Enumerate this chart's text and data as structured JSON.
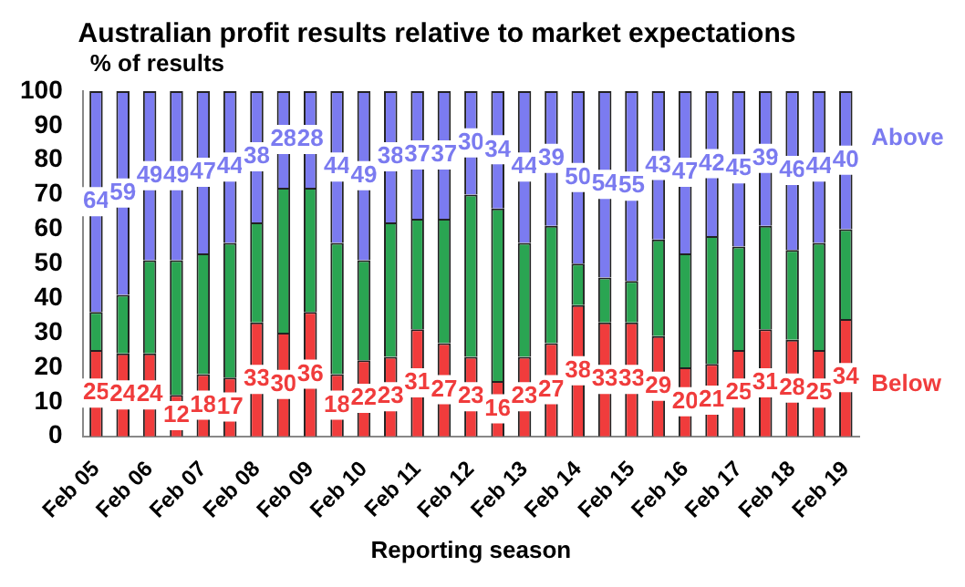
{
  "chart_data": {
    "type": "bar",
    "title": "Australian profit results relative to market expectations",
    "xlabel": "Reporting season",
    "ylabel": "% of results",
    "stacked": true,
    "legend": false,
    "grid": false,
    "categories": [
      "Feb 05",
      null,
      "Feb 06",
      null,
      "Feb 07",
      null,
      "Feb 08",
      null,
      "Feb 09",
      null,
      "Feb 10",
      null,
      "Feb 11",
      null,
      "Feb 12",
      null,
      "Feb 13",
      null,
      "Feb 14",
      null,
      "Feb 15",
      null,
      "Feb 16",
      null,
      "Feb 17",
      null,
      "Feb 18",
      null,
      "Feb 19"
    ],
    "ylim": [
      0,
      100
    ],
    "yticks": [
      0,
      10,
      20,
      30,
      40,
      50,
      60,
      70,
      80,
      90,
      100
    ],
    "series": [
      {
        "name": "Below",
        "color": "#f03c3c",
        "values": [
          25,
          24,
          24,
          12,
          18,
          17,
          33,
          30,
          36,
          18,
          22,
          23,
          31,
          27,
          23,
          16,
          23,
          27,
          38,
          33,
          33,
          29,
          20,
          21,
          25,
          31,
          28,
          25,
          34
        ],
        "value_labels": [
          "25",
          "24",
          "24",
          "12",
          "18",
          "17",
          "33",
          "30",
          "36",
          "18",
          "22",
          "23",
          "31",
          "27",
          "23",
          "16",
          "23",
          "27",
          "38",
          "33",
          "33",
          "29",
          "20",
          "21",
          "25",
          "31",
          "28",
          "25",
          "34"
        ]
      },
      {
        "color": "#2aa552",
        "values": [
          11,
          17,
          27,
          39,
          35,
          39,
          29,
          42,
          36,
          38,
          29,
          39,
          32,
          36,
          47,
          50,
          33,
          34,
          12,
          13,
          12,
          28,
          33,
          37,
          30,
          30,
          26,
          31,
          26
        ]
      },
      {
        "name": "Above",
        "color": "#7b7bf0",
        "values": [
          64,
          59,
          49,
          49,
          47,
          44,
          38,
          28,
          28,
          44,
          49,
          38,
          37,
          37,
          30,
          34,
          44,
          39,
          50,
          54,
          55,
          43,
          47,
          42,
          45,
          39,
          46,
          44,
          40
        ],
        "value_labels": [
          "64",
          "59",
          "49",
          "49",
          "47",
          "44",
          "38",
          "28",
          "28",
          "44",
          "49",
          "38",
          "37",
          "37",
          "30",
          "34",
          "44",
          "39",
          "50",
          "54",
          "55",
          "43",
          "47",
          "42",
          "45",
          "39",
          "46",
          "44",
          "40"
        ]
      }
    ]
  }
}
